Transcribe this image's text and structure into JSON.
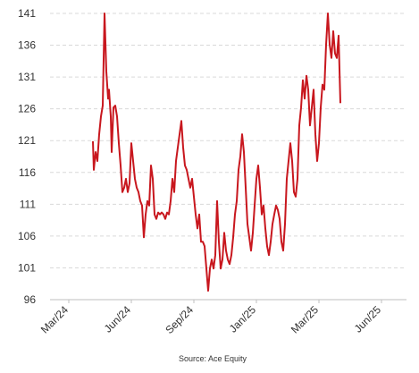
{
  "chart_data": {
    "type": "line",
    "source": "Source: Ace Equity",
    "xlim": [
      -0.3,
      5.4
    ],
    "xticks": [
      {
        "value": 0,
        "label": "Mar/24"
      },
      {
        "value": 1,
        "label": "Jun/24"
      },
      {
        "value": 2,
        "label": "Sep/24"
      },
      {
        "value": 3,
        "label": "Jan/25"
      },
      {
        "value": 4,
        "label": "Mar/25"
      },
      {
        "value": 5,
        "label": "Jun/25"
      }
    ],
    "ylim": [
      96,
      141
    ],
    "yticks": [
      96,
      101,
      106,
      111,
      116,
      121,
      126,
      131,
      136,
      141
    ],
    "grid": true,
    "series": [
      {
        "color": "#c8171e",
        "x": [
          0.386,
          0.4,
          0.429,
          0.457,
          0.486,
          0.514,
          0.543,
          0.571,
          0.6,
          0.629,
          0.643,
          0.671,
          0.686,
          0.714,
          0.743,
          0.771,
          0.8,
          0.829,
          0.857,
          0.886,
          0.914,
          0.943,
          0.971,
          1,
          1.029,
          1.057,
          1.086,
          1.114,
          1.143,
          1.171,
          1.2,
          1.229,
          1.257,
          1.286,
          1.314,
          1.343,
          1.371,
          1.4,
          1.429,
          1.457,
          1.486,
          1.514,
          1.543,
          1.571,
          1.6,
          1.629,
          1.657,
          1.686,
          1.714,
          1.743,
          1.771,
          1.8,
          1.829,
          1.857,
          1.886,
          1.914,
          1.943,
          1.971,
          2,
          2.029,
          2.057,
          2.086,
          2.114,
          2.143,
          2.171,
          2.2,
          2.229,
          2.257,
          2.286,
          2.314,
          2.343,
          2.371,
          2.4,
          2.429,
          2.457,
          2.486,
          2.514,
          2.543,
          2.571,
          2.6,
          2.629,
          2.657,
          2.686,
          2.714,
          2.743,
          2.771,
          2.8,
          2.829,
          2.857,
          2.886,
          2.914,
          2.943,
          2.971,
          3,
          3.029,
          3.057,
          3.086,
          3.114,
          3.143,
          3.171,
          3.2,
          3.229,
          3.257,
          3.286,
          3.314,
          3.343,
          3.371,
          3.4,
          3.429,
          3.457,
          3.486,
          3.514,
          3.543,
          3.571,
          3.6,
          3.629,
          3.657,
          3.686,
          3.714,
          3.743,
          3.771,
          3.8,
          3.829,
          3.857,
          3.886,
          3.914,
          3.943,
          3.971,
          4,
          4.029,
          4.057,
          4.086,
          4.114,
          4.143,
          4.171,
          4.2,
          4.229,
          4.257,
          4.286,
          4.314,
          4.343
        ],
        "values": [
          120.9,
          116.4,
          119.2,
          117.8,
          122,
          124.8,
          126.5,
          141,
          131.9,
          127.6,
          129,
          124.8,
          119.2,
          126.2,
          126.5,
          124.8,
          120.6,
          117.1,
          112.9,
          113.6,
          115,
          112.9,
          114.3,
          120.6,
          117.8,
          115,
          113.6,
          112.9,
          111.5,
          110.8,
          105.8,
          109.4,
          111.5,
          110.8,
          117.1,
          115,
          109.4,
          108.7,
          109.7,
          109.4,
          109.7,
          109.4,
          108.7,
          109.7,
          109.4,
          111.5,
          115,
          112.9,
          117.8,
          119.9,
          122,
          124.1,
          119.9,
          117.1,
          116.4,
          115,
          113.6,
          115,
          112.2,
          109.4,
          107.2,
          109.4,
          105.1,
          105.1,
          104.4,
          100.9,
          97.4,
          100.9,
          102.3,
          100.9,
          103,
          111.5,
          105.1,
          100.9,
          102.3,
          106.5,
          103.7,
          102.3,
          101.6,
          103,
          105.8,
          109.4,
          111.5,
          116.4,
          118.5,
          122,
          119.2,
          113.6,
          107.9,
          105.8,
          103.7,
          106.5,
          110.8,
          115,
          117.1,
          113.6,
          109.4,
          110.8,
          107.2,
          104.4,
          103,
          105.1,
          107.9,
          109.4,
          110.8,
          110.1,
          108.7,
          105.1,
          103.7,
          107.9,
          115,
          117.8,
          120.6,
          117.8,
          112.9,
          112.2,
          115,
          123.4,
          126.2,
          130.5,
          127.6,
          131.2,
          129,
          123.4,
          126.2,
          129,
          122,
          117.8,
          120.6,
          126.2,
          129.8,
          129,
          136.1,
          141,
          136.1,
          134,
          138.2,
          134.7,
          134,
          137.5,
          126.9
        ]
      }
    ]
  }
}
